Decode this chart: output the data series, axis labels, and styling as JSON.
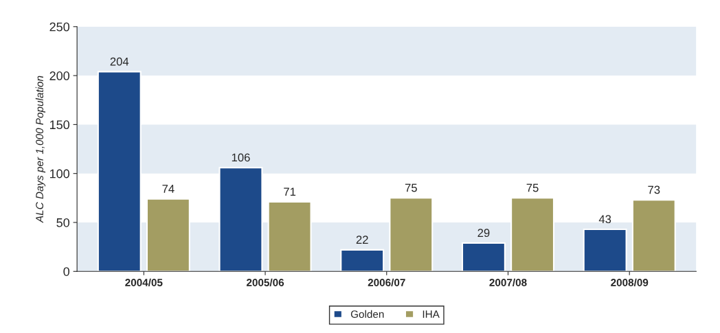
{
  "chart_data": {
    "type": "bar",
    "ylabel": "ALC Days per 1,000 Population",
    "categories": [
      "2004/05",
      "2005/06",
      "2006/07",
      "2007/08",
      "2008/09"
    ],
    "series": [
      {
        "name": "Golden",
        "color": "#1d4a8a",
        "values": [
          204,
          106,
          22,
          29,
          43
        ]
      },
      {
        "name": "IHA",
        "color": "#a39d62",
        "values": [
          74,
          71,
          75,
          75,
          73
        ]
      }
    ],
    "ylim": [
      0,
      250
    ],
    "yticks": [
      0,
      50,
      100,
      150,
      200,
      250
    ],
    "bands": [
      {
        "axis": "y",
        "from": 0,
        "to": 50,
        "color": "#e3ebf3"
      },
      {
        "axis": "y",
        "from": 100,
        "to": 150,
        "color": "#e3ebf3"
      },
      {
        "axis": "y",
        "from": 200,
        "to": 250,
        "color": "#e3ebf3"
      }
    ],
    "data_labels": true,
    "legend": "bottom",
    "grid": false
  }
}
